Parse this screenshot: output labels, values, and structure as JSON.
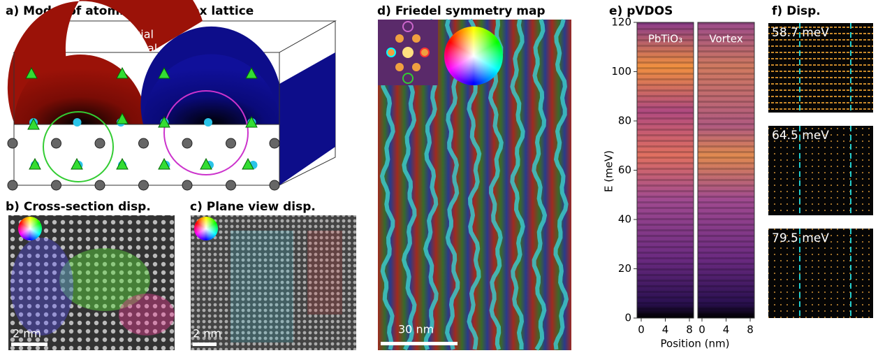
{
  "panels": {
    "a": {
      "title": "a) Model of atomic and vortex lattice",
      "labels": [
        "axial",
        "radial"
      ]
    },
    "b": {
      "title": "b) Cross-section disp.",
      "scale_bar": "2 nm"
    },
    "c": {
      "title": "c) Plane view disp.",
      "scale_bar": "2 nm"
    },
    "d": {
      "title": "d) Friedel symmetry map",
      "scale_bar": "30 nm"
    },
    "e": {
      "title": "e) pVDOS",
      "ylabel": "E (meV)",
      "xlabel": "Position (nm)",
      "subpanels": [
        "PbTiO₃",
        "Vortex"
      ],
      "ylim": [
        0,
        120
      ],
      "yticks": [
        0,
        20,
        40,
        60,
        80,
        100,
        120
      ],
      "xlim": [
        0,
        8
      ],
      "xticks": [
        0,
        4,
        8
      ]
    },
    "f": {
      "title": "f) Disp.",
      "energies": [
        "58.7 meV",
        "64.5 meV",
        "79.5 meV"
      ]
    }
  }
}
